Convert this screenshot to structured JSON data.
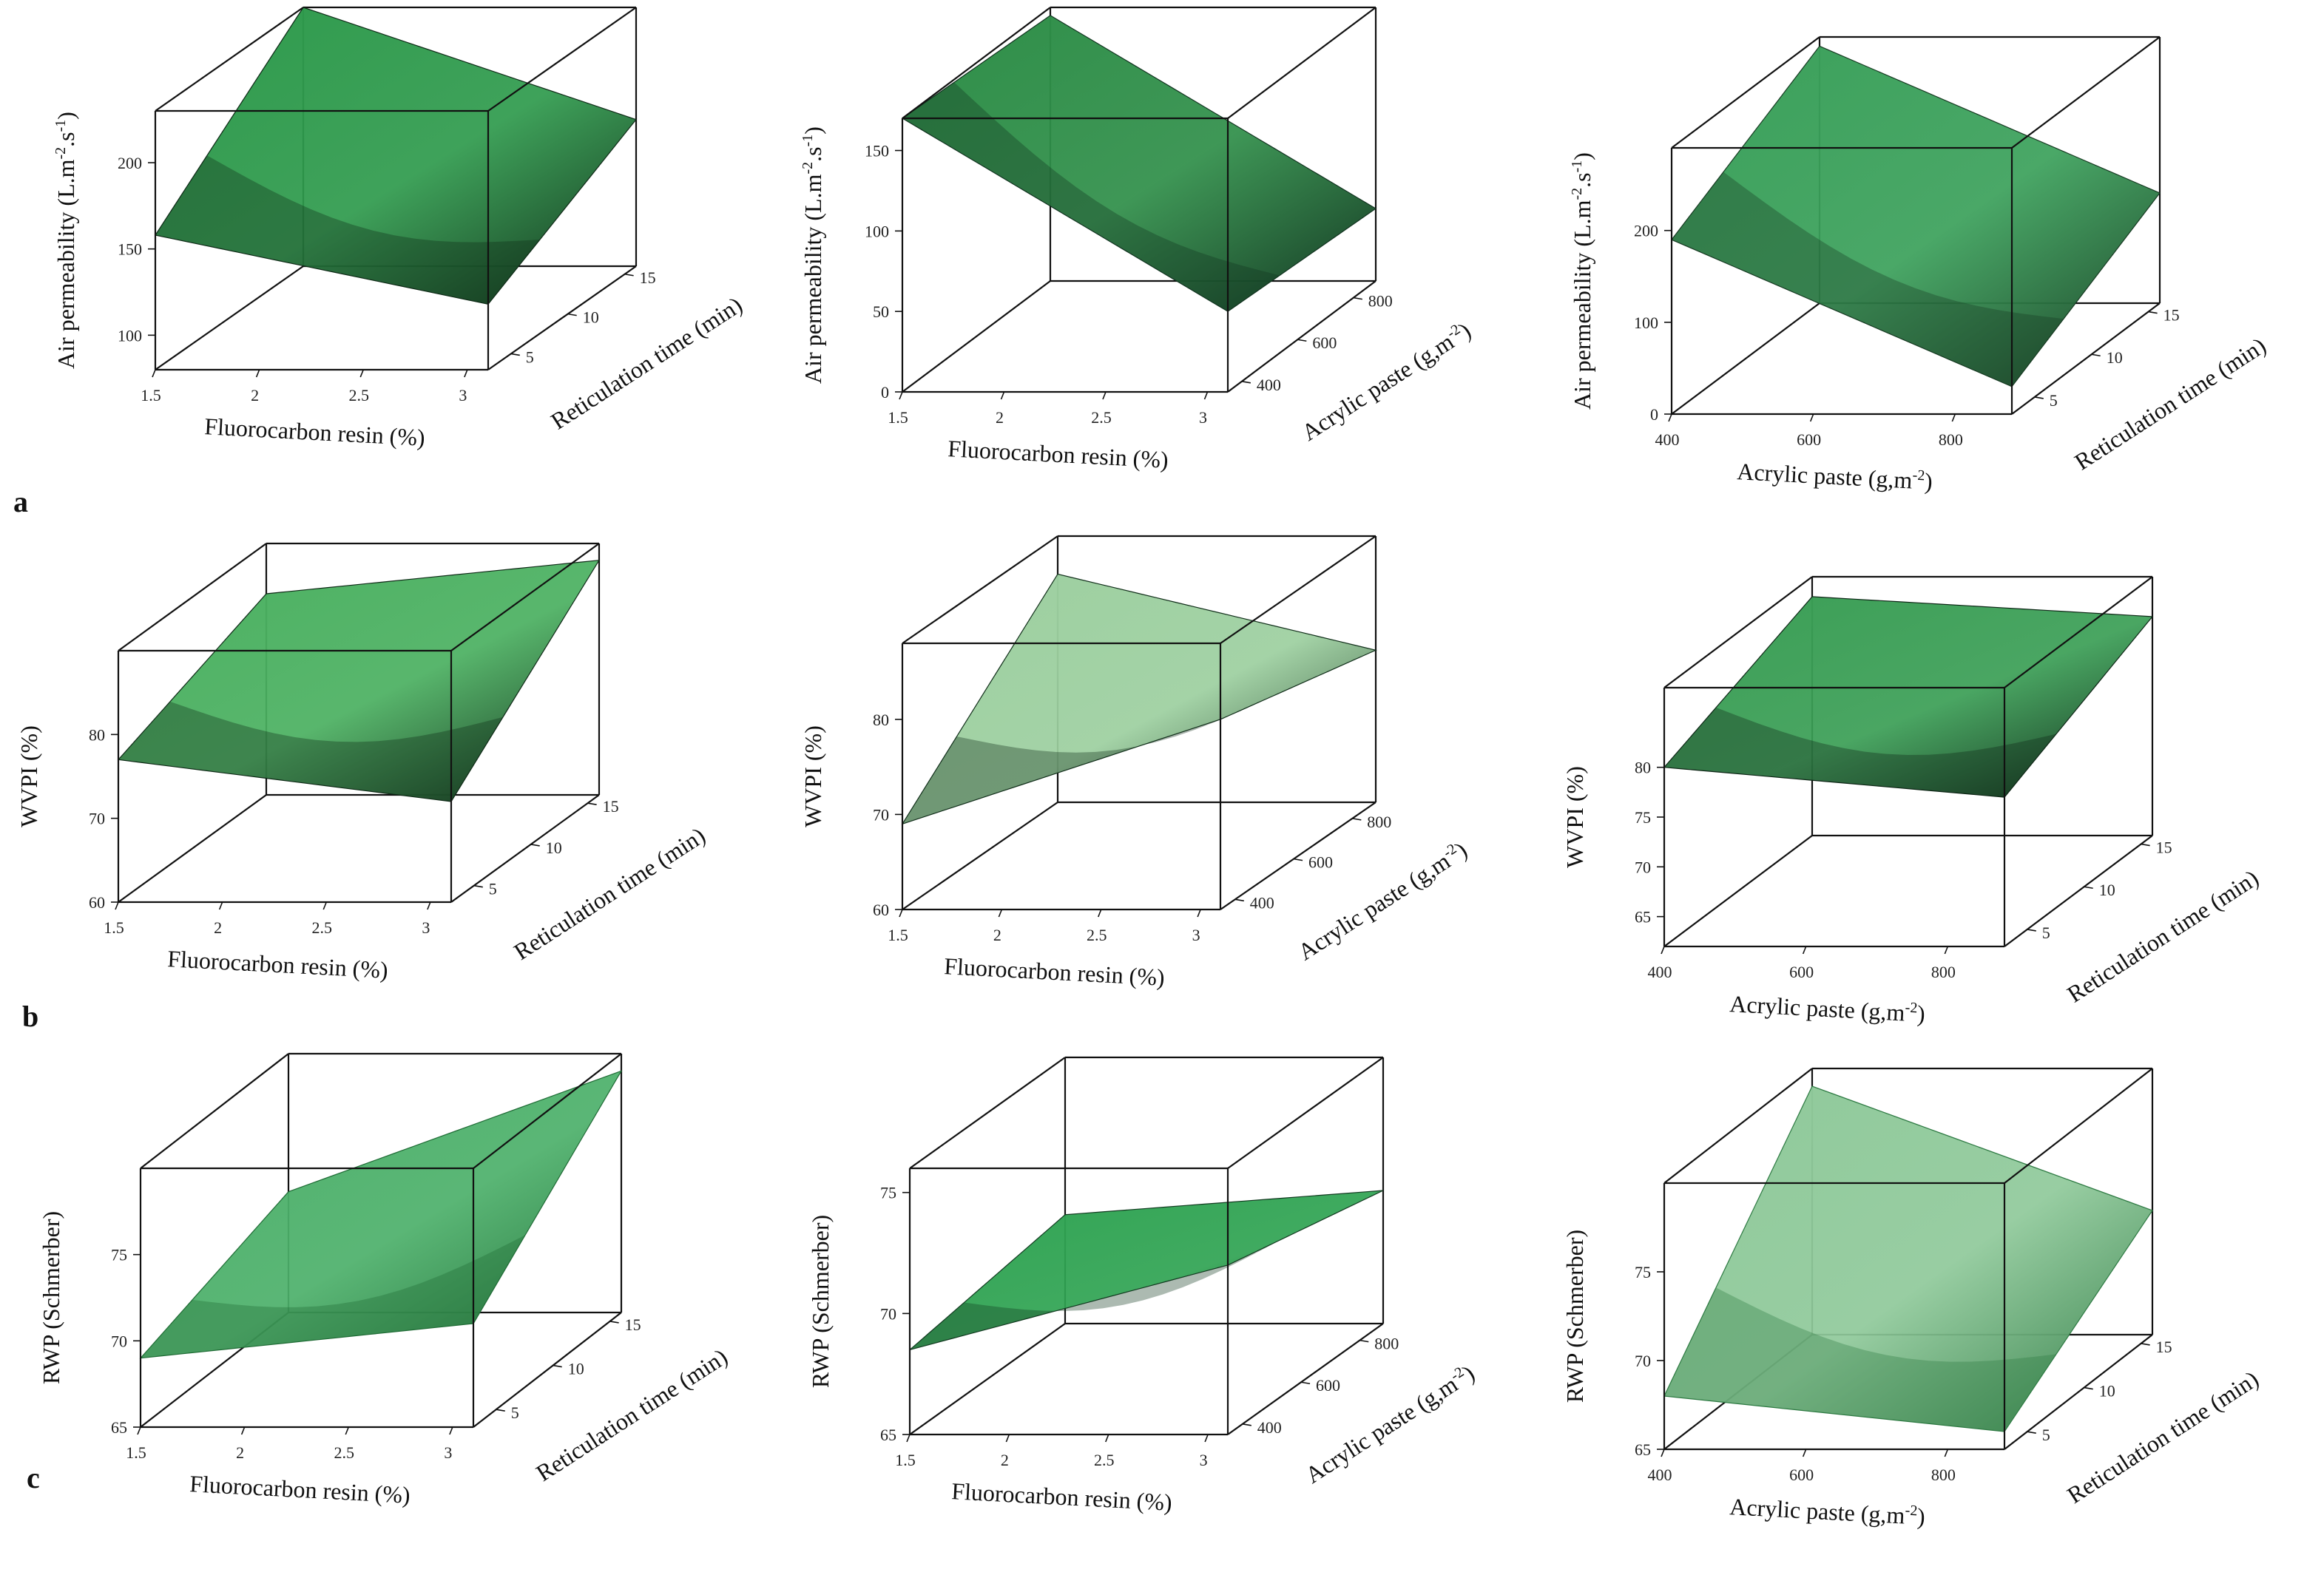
{
  "figure": {
    "row_labels": [
      "a",
      "b",
      "c"
    ]
  },
  "chart_data": [
    {
      "type": "surface",
      "row": "a",
      "xlabel": "Fluorocarbon resin (%)",
      "ylabel": "Reticulation time (min)",
      "zlabel": "Air permeability (L.m-2.s-1)",
      "zlabel_main": "Air permeability (L.m",
      "zlabel_sup1": "-2",
      "zlabel_mid": ".s",
      "zlabel_sup2": "-1",
      "zlabel_end": ")",
      "xticks": [
        "1.5",
        "2",
        "2.5",
        "3"
      ],
      "yticks": [
        "5",
        "10",
        "15"
      ],
      "zticks": [
        "100",
        "150",
        "200"
      ],
      "xlim": [
        1.5,
        3.1
      ],
      "ylim": [
        3,
        16
      ],
      "zlim": [
        80,
        230
      ],
      "corners": {
        "x0y0": 158,
        "x1y0": 118,
        "x0y1": 230,
        "x1y1": 165
      },
      "colors": {
        "light": "#2e9a4c",
        "dark": "#0f2a17"
      }
    },
    {
      "type": "surface",
      "row": "a",
      "xlabel": "Fluorocarbon resin (%)",
      "ylabel": "Acrylic paste (g,m-2)",
      "zlabel": "Air permeability (L.m-2.s-1)",
      "ylabel_main": "Acrylic paste (g,m",
      "ylabel_sup": "-2",
      "ylabel_end": ")",
      "zlabel_main": "Air permeability (L.m",
      "zlabel_sup1": "-2",
      "zlabel_mid": ".s",
      "zlabel_sup2": "-1",
      "zlabel_end": ")",
      "xticks": [
        "1.5",
        "2",
        "2.5",
        "3"
      ],
      "yticks": [
        "400",
        "600",
        "800"
      ],
      "zticks": [
        "0",
        "50",
        "100",
        "150"
      ],
      "xlim": [
        1.5,
        3.1
      ],
      "ylim": [
        350,
        880
      ],
      "zlim": [
        0,
        170
      ],
      "corners": {
        "x0y0": 170,
        "x1y0": 50,
        "x0y1": 165,
        "x1y1": 45
      },
      "colors": {
        "light": "#2e8e48",
        "dark": "#123320"
      }
    },
    {
      "type": "surface",
      "row": "a",
      "xlabel": "Acrylic paste (g,m-2)",
      "ylabel": "Reticulation time (min)",
      "zlabel": "Air permeability (L.m-2.s-1)",
      "xlabel_main": "Acrylic paste (g,m",
      "xlabel_sup": "-2",
      "xlabel_end": ")",
      "zlabel_main": "Air permeability (L.m",
      "zlabel_sup1": "-2",
      "zlabel_mid": ".s",
      "zlabel_sup2": "-1",
      "zlabel_end": ")",
      "xticks": [
        "400",
        "600",
        "800"
      ],
      "yticks": [
        "5",
        "10",
        "15"
      ],
      "zticks": [
        "0",
        "100",
        "200"
      ],
      "xlim": [
        400,
        880
      ],
      "ylim": [
        3,
        16
      ],
      "zlim": [
        0,
        290
      ],
      "corners": {
        "x0y0": 190,
        "x1y0": 30,
        "x0y1": 280,
        "x1y1": 120
      },
      "colors": {
        "light": "#3aa05a",
        "dark": "#173a22"
      }
    },
    {
      "type": "surface",
      "row": "b",
      "xlabel": "Fluorocarbon resin (%)",
      "ylabel": "Reticulation time (min)",
      "zlabel": "WVPI (%)",
      "xticks": [
        "1.5",
        "2",
        "2.5",
        "3"
      ],
      "yticks": [
        "5",
        "10",
        "15"
      ],
      "zticks": [
        "60",
        "70",
        "80"
      ],
      "xlim": [
        1.5,
        3.1
      ],
      "ylim": [
        3,
        16
      ],
      "zlim": [
        60,
        90
      ],
      "corners": {
        "x0y0": 77,
        "x1y0": 72,
        "x0y1": 84,
        "x1y1": 88
      },
      "colors": {
        "light": "#4ab060",
        "dark": "#0f2a17"
      }
    },
    {
      "type": "surface",
      "row": "b",
      "xlabel": "Fluorocarbon resin (%)",
      "ylabel": "Acrylic paste (g,m-2)",
      "zlabel": "WVPI (%)",
      "ylabel_main": "Acrylic paste (g,m",
      "ylabel_sup": "-2",
      "ylabel_end": ")",
      "xticks": [
        "1.5",
        "2",
        "2.5",
        "3"
      ],
      "yticks": [
        "400",
        "600",
        "800"
      ],
      "zticks": [
        "60",
        "70",
        "80"
      ],
      "xlim": [
        1.5,
        3.1
      ],
      "ylim": [
        350,
        880
      ],
      "zlim": [
        60,
        88
      ],
      "corners": {
        "x0y0": 69,
        "x1y0": 80,
        "x0y1": 84,
        "x1y1": 76
      },
      "colors": {
        "light": "#9ccf9f",
        "dark": "#112e1a"
      }
    },
    {
      "type": "surface",
      "row": "b",
      "xlabel": "Acrylic paste (g,m-2)",
      "ylabel": "Reticulation time (min)",
      "zlabel": "WVPI (%)",
      "xlabel_main": "Acrylic paste (g,m",
      "xlabel_sup": "-2",
      "xlabel_end": ")",
      "xticks": [
        "400",
        "600",
        "800"
      ],
      "yticks": [
        "5",
        "10",
        "15"
      ],
      "zticks": [
        "65",
        "70",
        "75",
        "80"
      ],
      "xlim": [
        400,
        880
      ],
      "ylim": [
        3,
        16
      ],
      "zlim": [
        62,
        88
      ],
      "corners": {
        "x0y0": 80,
        "x1y0": 77,
        "x0y1": 86,
        "x1y1": 84
      },
      "colors": {
        "light": "#3a9e55",
        "dark": "#0e2616"
      }
    },
    {
      "type": "surface",
      "row": "c",
      "xlabel": "Fluorocarbon resin (%)",
      "ylabel": "Reticulation time (min)",
      "zlabel": "RWP (Schmerber)",
      "xticks": [
        "1.5",
        "2",
        "2.5",
        "3"
      ],
      "yticks": [
        "5",
        "10",
        "15"
      ],
      "zticks": [
        "65",
        "70",
        "75"
      ],
      "xlim": [
        1.5,
        3.1
      ],
      "ylim": [
        3,
        16
      ],
      "zlim": [
        65,
        80
      ],
      "corners": {
        "x0y0": 69,
        "x1y0": 71,
        "x0y1": 72,
        "x1y1": 79
      },
      "colors": {
        "light": "#4cb06a",
        "dark": "#1f6b35"
      }
    },
    {
      "type": "surface",
      "row": "c",
      "xlabel": "Fluorocarbon resin (%)",
      "ylabel": "Acrylic paste (g,m-2)",
      "zlabel": "RWP (Schmerber)",
      "ylabel_main": "Acrylic paste (g,m",
      "ylabel_sup": "-2",
      "ylabel_end": ")",
      "xticks": [
        "1.5",
        "2",
        "2.5",
        "3"
      ],
      "yticks": [
        "400",
        "600",
        "800"
      ],
      "zticks": [
        "65",
        "70",
        "75"
      ],
      "xlim": [
        1.5,
        3.1
      ],
      "ylim": [
        350,
        880
      ],
      "zlim": [
        65,
        76
      ],
      "corners": {
        "x0y0": 68.5,
        "x1y0": 72,
        "x0y1": 69.5,
        "x1y1": 70.5
      },
      "colors": {
        "light": "#2fa352",
        "dark": "#123a20"
      }
    },
    {
      "type": "surface",
      "row": "c",
      "xlabel": "Acrylic paste (g,m-2)",
      "ylabel": "Reticulation time (min)",
      "zlabel": "RWP (Schmerber)",
      "xlabel_main": "Acrylic paste (g,m",
      "xlabel_sup": "-2",
      "xlabel_end": ")",
      "xticks": [
        "400",
        "600",
        "800"
      ],
      "yticks": [
        "5",
        "10",
        "15"
      ],
      "zticks": [
        "65",
        "70",
        "75"
      ],
      "xlim": [
        400,
        880
      ],
      "ylim": [
        3,
        16
      ],
      "zlim": [
        65,
        80
      ],
      "corners": {
        "x0y0": 68,
        "x1y0": 66,
        "x0y1": 79,
        "x1y1": 72
      },
      "colors": {
        "light": "#8fc99a",
        "dark": "#2e7a43"
      }
    }
  ]
}
